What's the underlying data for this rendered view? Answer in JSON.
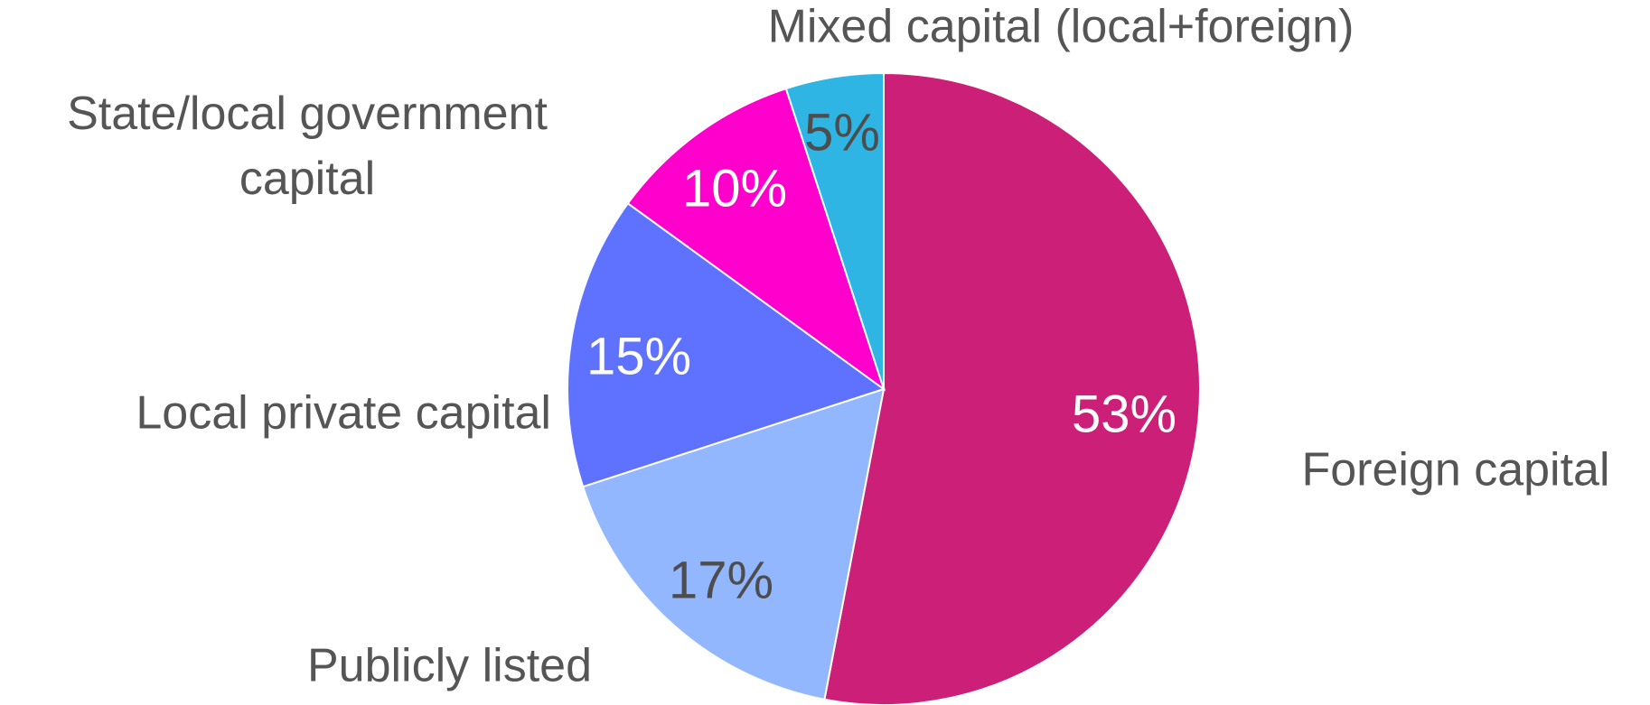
{
  "chart_data": {
    "type": "pie",
    "categories": [
      "Foreign capital",
      "Publicly listed",
      "Local private capital",
      "State/local government capital",
      "Mixed capital (local+foreign)"
    ],
    "values": [
      53,
      17,
      15,
      10,
      5
    ],
    "value_labels": [
      "53%",
      "17%",
      "15%",
      "10%",
      "5%"
    ],
    "colors": [
      "#cc1f78",
      "#93b7ff",
      "#5e72ff",
      "#ff00cc",
      "#2fb5e3"
    ],
    "label_colors": [
      "#ffffff",
      "#4d4d4d",
      "#ffffff",
      "#ffffff",
      "#4d4d4d"
    ]
  }
}
